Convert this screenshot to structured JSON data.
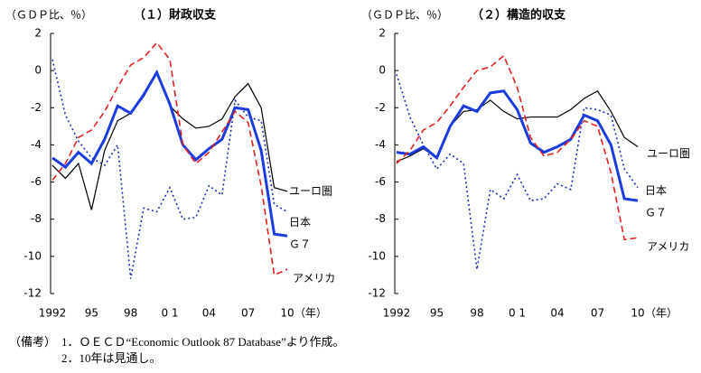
{
  "chart_data": [
    {
      "type": "line",
      "title": "（１）財政収支",
      "y_label": "（ＧＤＰ比、％）",
      "x_unit": "（年）",
      "categories": [
        "1992",
        null,
        null,
        "95",
        null,
        null,
        "98",
        null,
        null,
        "0 1",
        null,
        null,
        "04",
        null,
        null,
        "07",
        null,
        null,
        "10"
      ],
      "ylim": [
        -12,
        2
      ],
      "yticks": [
        -12,
        -10,
        -8,
        -6,
        -4,
        -2,
        0,
        2
      ],
      "series": [
        {
          "name": "ユーロ圏",
          "color": "#000000",
          "style": "solid",
          "width": 1.2,
          "values": [
            -5.1,
            -5.8,
            -5.0,
            -7.5,
            -4.3,
            -2.7,
            -2.3,
            -1.4,
            -0.1,
            -1.9,
            -2.6,
            -3.1,
            -3.0,
            -2.6,
            -1.4,
            -0.7,
            -2.0,
            -6.3,
            -6.5
          ]
        },
        {
          "name": "日本",
          "color": "#1a2fb8",
          "style": "dotted",
          "width": 1.6,
          "values": [
            0.6,
            -2.4,
            -3.8,
            -4.7,
            -5.1,
            -4.0,
            -11.2,
            -7.4,
            -7.6,
            -6.3,
            -8.0,
            -7.9,
            -6.2,
            -6.7,
            -1.6,
            -2.5,
            -2.7,
            -7.2,
            -7.6
          ]
        },
        {
          "name": "Ｇ７",
          "color": "#1a3be0",
          "style": "solid",
          "width": 3,
          "values": [
            -4.7,
            -5.2,
            -4.4,
            -5.0,
            -3.7,
            -1.9,
            -2.3,
            -1.3,
            -0.1,
            -1.8,
            -4.0,
            -4.8,
            -4.2,
            -3.7,
            -2.0,
            -2.1,
            -4.3,
            -8.8,
            -8.9
          ]
        },
        {
          "name": "アメリカ",
          "color": "#e82020",
          "style": "dashed",
          "width": 1.6,
          "values": [
            -5.9,
            -5.0,
            -3.6,
            -3.2,
            -2.2,
            -0.9,
            0.3,
            0.7,
            1.5,
            0.6,
            -4.0,
            -5.0,
            -4.4,
            -3.3,
            -2.2,
            -2.8,
            -6.2,
            -11.0,
            -10.7
          ]
        }
      ]
    },
    {
      "type": "line",
      "title": "（２）構造的収支",
      "y_label": "（ＧＤＰ比、％）",
      "x_unit": "（年）",
      "categories": [
        "1992",
        null,
        null,
        "95",
        null,
        null,
        "98",
        null,
        null,
        "0 1",
        null,
        null,
        "04",
        null,
        null,
        "07",
        null,
        null,
        "10"
      ],
      "ylim": [
        -12,
        2
      ],
      "yticks": [
        -12,
        -10,
        -8,
        -6,
        -4,
        -2,
        0,
        2
      ],
      "series": [
        {
          "name": "ユーロ圏",
          "color": "#000000",
          "style": "solid",
          "width": 1.2,
          "values": [
            -4.9,
            -4.6,
            -4.2,
            -4.7,
            -3.0,
            -2.2,
            -2.1,
            -1.6,
            -2.2,
            -2.6,
            -2.5,
            -2.5,
            -2.5,
            -2.1,
            -1.5,
            -1.1,
            -2.2,
            -3.6,
            -4.1
          ]
        },
        {
          "name": "日本",
          "color": "#1a2fb8",
          "style": "dotted",
          "width": 1.6,
          "values": [
            -0.2,
            -2.5,
            -4.0,
            -5.3,
            -4.5,
            -5.0,
            -10.7,
            -6.4,
            -6.9,
            -5.6,
            -7.0,
            -6.9,
            -6.1,
            -6.4,
            -2.0,
            -2.1,
            -2.4,
            -5.3,
            -6.3
          ]
        },
        {
          "name": "Ｇ７",
          "color": "#1a3be0",
          "style": "solid",
          "width": 3,
          "values": [
            -4.4,
            -4.5,
            -4.1,
            -4.7,
            -3.0,
            -1.9,
            -2.2,
            -1.2,
            -1.1,
            -2.1,
            -3.9,
            -4.4,
            -4.1,
            -3.7,
            -2.4,
            -2.7,
            -4.0,
            -6.9,
            -7.0
          ]
        },
        {
          "name": "アメリカ",
          "color": "#e82020",
          "style": "dashed",
          "width": 1.6,
          "values": [
            -5.0,
            -4.3,
            -3.2,
            -2.8,
            -1.9,
            -0.9,
            0.0,
            0.2,
            0.8,
            -0.9,
            -3.6,
            -4.6,
            -4.4,
            -3.7,
            -2.7,
            -3.0,
            -5.5,
            -9.1,
            -9.0
          ]
        }
      ]
    }
  ],
  "notes": {
    "label": "（備考）",
    "items": [
      "1．ＯＥＣＤ“Economic Outlook 87 Database”より作成。",
      "2．10年は見通し。"
    ]
  }
}
